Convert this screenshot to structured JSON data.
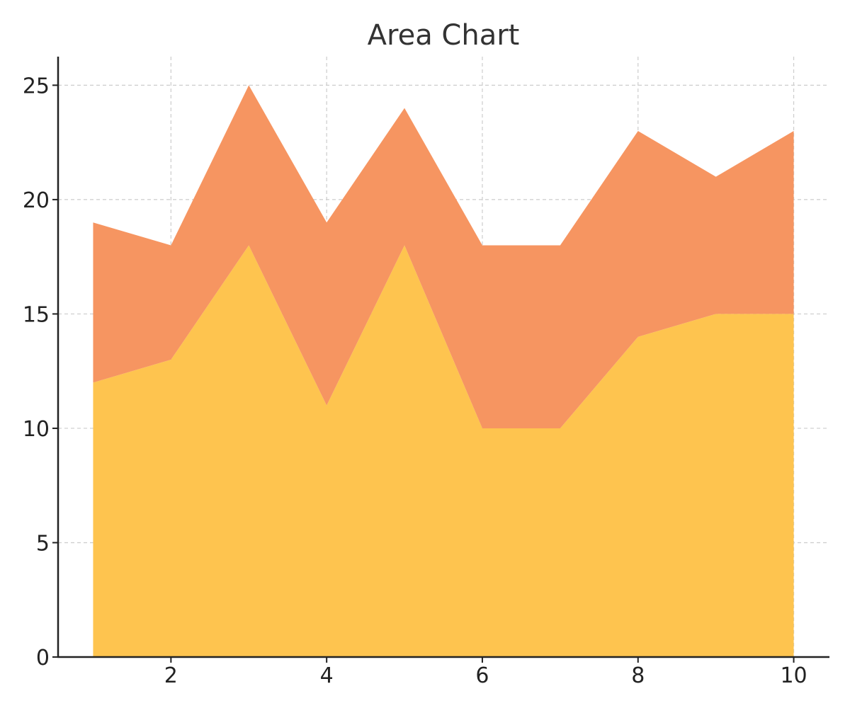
{
  "chart_data": {
    "type": "area",
    "stacked": true,
    "title": "Area Chart",
    "xlabel": "",
    "ylabel": "",
    "x": [
      1,
      2,
      3,
      4,
      5,
      6,
      7,
      8,
      9,
      10
    ],
    "series": [
      {
        "values": [
          12,
          13,
          18,
          11,
          18,
          10,
          10,
          14,
          15,
          15
        ],
        "color": "#FEC44F"
      },
      {
        "values": [
          7,
          5,
          7,
          8,
          6,
          8,
          8,
          9,
          6,
          8
        ],
        "color": "#F69561"
      }
    ],
    "xlim": [
      0.55,
      10.45
    ],
    "ylim": [
      0,
      26.25
    ],
    "xticks": [
      2,
      4,
      6,
      8,
      10
    ],
    "yticks": [
      0,
      5,
      10,
      15,
      20,
      25
    ],
    "grid": true,
    "legend": "none"
  }
}
